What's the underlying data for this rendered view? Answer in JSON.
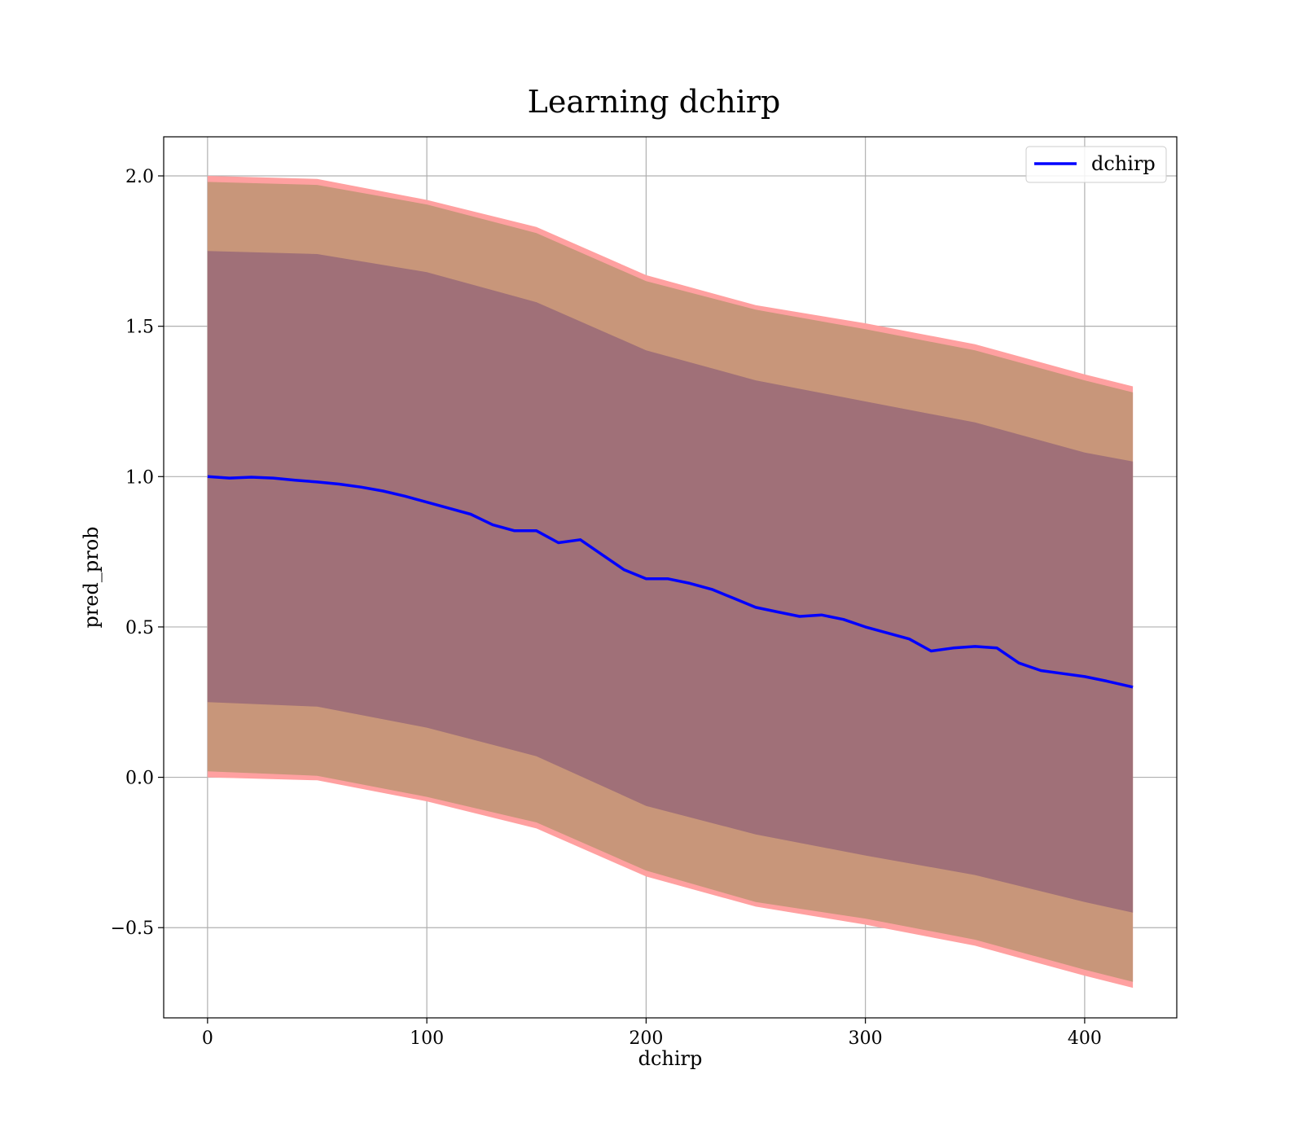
{
  "chart_data": {
    "type": "line",
    "title": "Learning dchirp",
    "xlabel": "dchirp",
    "ylabel": "pred_prob",
    "xlim": [
      -20,
      442
    ],
    "ylim": [
      -0.8,
      2.13
    ],
    "xticks": [
      0,
      100,
      200,
      300,
      400
    ],
    "xtick_labels": [
      "0",
      "100",
      "200",
      "300",
      "400"
    ],
    "yticks": [
      -0.5,
      0.0,
      0.5,
      1.0,
      1.5,
      2.0
    ],
    "ytick_labels": [
      "−0.5",
      "0.0",
      "0.5",
      "1.0",
      "1.5",
      "2.0"
    ],
    "grid": true,
    "legend": {
      "position": "top-right",
      "entries": [
        "dchirp"
      ]
    },
    "series": [
      {
        "name": "dchirp",
        "color": "#0000ff",
        "x": [
          0,
          10,
          20,
          30,
          40,
          50,
          60,
          70,
          80,
          90,
          100,
          110,
          120,
          130,
          140,
          150,
          160,
          170,
          180,
          190,
          200,
          210,
          220,
          230,
          240,
          250,
          260,
          270,
          280,
          290,
          300,
          310,
          320,
          330,
          340,
          350,
          360,
          370,
          380,
          390,
          400,
          410,
          422
        ],
        "y": [
          1.0,
          0.995,
          0.998,
          0.995,
          0.988,
          0.982,
          0.975,
          0.965,
          0.952,
          0.935,
          0.915,
          0.895,
          0.875,
          0.84,
          0.82,
          0.82,
          0.78,
          0.79,
          0.74,
          0.69,
          0.66,
          0.66,
          0.645,
          0.625,
          0.595,
          0.565,
          0.55,
          0.535,
          0.54,
          0.525,
          0.5,
          0.48,
          0.46,
          0.42,
          0.43,
          0.435,
          0.43,
          0.38,
          0.355,
          0.345,
          0.335,
          0.32,
          0.3
        ]
      }
    ],
    "bands": [
      {
        "name": "outer-band",
        "fill": "#ffa0a0",
        "x": [
          0,
          50,
          100,
          150,
          200,
          250,
          300,
          350,
          400,
          422
        ],
        "upper": [
          2.0,
          1.99,
          1.92,
          1.83,
          1.67,
          1.57,
          1.51,
          1.44,
          1.34,
          1.3
        ],
        "lower": [
          0.0,
          -0.01,
          -0.08,
          -0.17,
          -0.33,
          -0.43,
          -0.49,
          -0.56,
          -0.66,
          -0.7
        ]
      },
      {
        "name": "middle-band",
        "fill": "#c8967a",
        "x": [
          0,
          50,
          100,
          150,
          200,
          250,
          300,
          350,
          400,
          422
        ],
        "upper": [
          1.98,
          1.97,
          1.905,
          1.81,
          1.65,
          1.555,
          1.49,
          1.42,
          1.32,
          1.28
        ],
        "lower": [
          0.02,
          0.005,
          -0.065,
          -0.15,
          -0.31,
          -0.415,
          -0.47,
          -0.54,
          -0.64,
          -0.68
        ]
      },
      {
        "name": "inner-band",
        "fill": "#a07078",
        "x": [
          0,
          50,
          100,
          150,
          200,
          250,
          300,
          350,
          400,
          422
        ],
        "upper": [
          1.75,
          1.74,
          1.68,
          1.58,
          1.42,
          1.32,
          1.25,
          1.18,
          1.08,
          1.05
        ],
        "lower": [
          0.25,
          0.235,
          0.165,
          0.07,
          -0.095,
          -0.19,
          -0.26,
          -0.325,
          -0.415,
          -0.45
        ]
      }
    ]
  }
}
